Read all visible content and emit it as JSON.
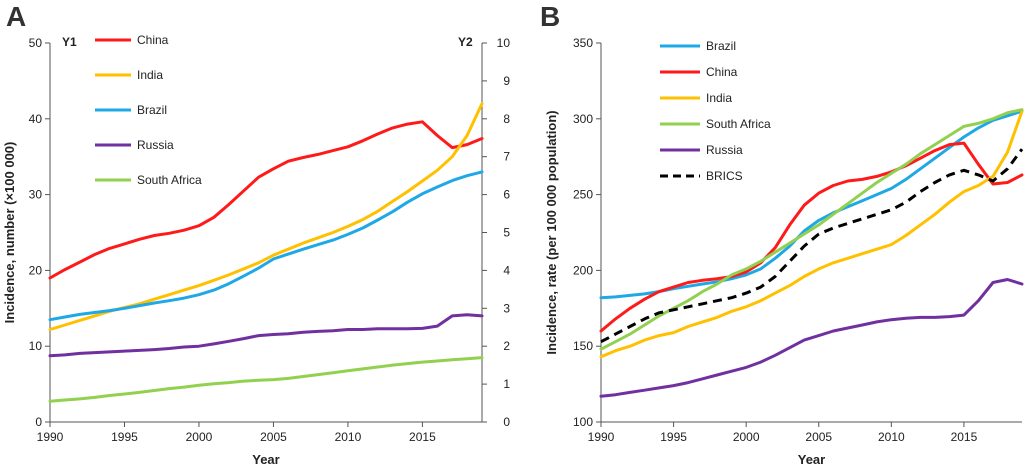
{
  "chart_data": [
    {
      "panel": "A",
      "type": "line",
      "title": "",
      "xlabel": "Year",
      "ylabel": "Incidence, number (×100 000)",
      "y1_tag": "Y1",
      "y2_tag": "Y2",
      "xlim": [
        1990,
        2019
      ],
      "ylim": [
        0,
        50
      ],
      "y2lim": [
        0,
        10
      ],
      "xticks": [
        1990,
        1995,
        2000,
        2005,
        2010,
        2015
      ],
      "yticks": [
        0,
        10,
        20,
        30,
        40,
        50
      ],
      "y2ticks": [
        0,
        1,
        2,
        3,
        4,
        5,
        6,
        7,
        8,
        9,
        10
      ],
      "grid": false,
      "legend_position": "top-left",
      "x": [
        1990,
        1991,
        1992,
        1993,
        1994,
        1995,
        1996,
        1997,
        1998,
        1999,
        2000,
        2001,
        2002,
        2003,
        2004,
        2005,
        2006,
        2007,
        2008,
        2009,
        2010,
        2011,
        2012,
        2013,
        2014,
        2015,
        2016,
        2017,
        2018,
        2019
      ],
      "series": [
        {
          "name": "China",
          "color": "#ff1a1a",
          "axis": "y1",
          "dash": false,
          "values": [
            19.0,
            20.1,
            21.1,
            22.1,
            22.9,
            23.5,
            24.1,
            24.6,
            24.9,
            25.3,
            25.9,
            27.0,
            28.7,
            30.5,
            32.3,
            33.4,
            34.4,
            34.9,
            35.3,
            35.8,
            36.3,
            37.1,
            38.0,
            38.8,
            39.3,
            39.6,
            37.8,
            36.2,
            36.6,
            37.4
          ]
        },
        {
          "name": "India",
          "color": "#ffc000",
          "axis": "y1",
          "dash": false,
          "values": [
            12.2,
            12.8,
            13.4,
            14.0,
            14.6,
            15.1,
            15.6,
            16.2,
            16.8,
            17.4,
            18.0,
            18.7,
            19.4,
            20.2,
            21.0,
            22.0,
            22.8,
            23.6,
            24.3,
            25.0,
            25.8,
            26.7,
            27.8,
            29.1,
            30.4,
            31.8,
            33.2,
            35.0,
            37.8,
            42.0
          ]
        },
        {
          "name": "Brazil",
          "color": "#1fa8e6",
          "axis": "y2",
          "dash": false,
          "values": [
            2.7,
            2.77,
            2.84,
            2.89,
            2.94,
            3.0,
            3.07,
            3.14,
            3.2,
            3.27,
            3.36,
            3.48,
            3.65,
            3.85,
            4.06,
            4.3,
            4.43,
            4.56,
            4.68,
            4.8,
            4.95,
            5.12,
            5.33,
            5.55,
            5.8,
            6.02,
            6.2,
            6.37,
            6.5,
            6.6
          ]
        },
        {
          "name": "Russia",
          "color": "#7030a0",
          "axis": "y2",
          "dash": false,
          "values": [
            1.75,
            1.77,
            1.81,
            1.83,
            1.85,
            1.87,
            1.89,
            1.91,
            1.94,
            1.98,
            2.0,
            2.06,
            2.13,
            2.2,
            2.28,
            2.31,
            2.33,
            2.37,
            2.39,
            2.41,
            2.44,
            2.44,
            2.46,
            2.46,
            2.46,
            2.47,
            2.53,
            2.8,
            2.83,
            2.8
          ]
        },
        {
          "name": "South Africa",
          "color": "#92d050",
          "axis": "y2",
          "dash": false,
          "values": [
            0.55,
            0.58,
            0.61,
            0.65,
            0.7,
            0.74,
            0.78,
            0.83,
            0.88,
            0.92,
            0.97,
            1.01,
            1.04,
            1.08,
            1.1,
            1.12,
            1.15,
            1.2,
            1.25,
            1.3,
            1.35,
            1.4,
            1.45,
            1.5,
            1.54,
            1.58,
            1.61,
            1.64,
            1.67,
            1.7
          ]
        }
      ]
    },
    {
      "panel": "B",
      "type": "line",
      "title": "",
      "xlabel": "Year",
      "ylabel": "Incidence, rate (per 100 000 population)",
      "xlim": [
        1990,
        2019
      ],
      "ylim": [
        100,
        350
      ],
      "xticks": [
        1990,
        1995,
        2000,
        2005,
        2010,
        2015
      ],
      "yticks": [
        100,
        150,
        200,
        250,
        300,
        350
      ],
      "grid": false,
      "legend_position": "top-left",
      "x": [
        1990,
        1991,
        1992,
        1993,
        1994,
        1995,
        1996,
        1997,
        1998,
        1999,
        2000,
        2001,
        2002,
        2003,
        2004,
        2005,
        2006,
        2007,
        2008,
        2009,
        2010,
        2011,
        2012,
        2013,
        2014,
        2015,
        2016,
        2017,
        2018,
        2019
      ],
      "series": [
        {
          "name": "Brazil",
          "color": "#1fa8e6",
          "dash": false,
          "values": [
            182,
            182.5,
            183.5,
            184.5,
            186,
            188,
            189.5,
            191,
            192.5,
            194.5,
            197,
            201,
            208,
            216,
            226,
            233,
            238,
            242,
            246,
            250,
            254,
            260,
            267,
            274,
            281,
            288,
            294,
            299,
            302,
            305
          ]
        },
        {
          "name": "China",
          "color": "#ff1a1a",
          "dash": false,
          "values": [
            160,
            168,
            175,
            181,
            186,
            189,
            192,
            193.5,
            194.5,
            196,
            199,
            205,
            215,
            230,
            243,
            251,
            256,
            259,
            260,
            262,
            265,
            269,
            274,
            279,
            283,
            284,
            270,
            257,
            258,
            263
          ]
        },
        {
          "name": "India",
          "color": "#ffc000",
          "dash": false,
          "values": [
            143,
            147,
            150,
            154,
            157,
            159,
            163,
            166,
            169,
            173,
            176,
            180,
            185,
            190,
            196,
            201,
            205,
            208,
            211,
            214,
            217,
            223,
            230,
            237,
            245,
            252,
            256,
            262,
            278,
            305
          ]
        },
        {
          "name": "South Africa",
          "color": "#92d050",
          "dash": false,
          "values": [
            148,
            153,
            158,
            164,
            170,
            175,
            180,
            186,
            191,
            197,
            201,
            206,
            212,
            218,
            224,
            230,
            237,
            244,
            251,
            258,
            264,
            270,
            277,
            283,
            289,
            295,
            297,
            300,
            304,
            306
          ]
        },
        {
          "name": "Russia",
          "color": "#7030a0",
          "dash": false,
          "values": [
            117,
            118,
            119.5,
            121,
            122.5,
            124,
            126,
            128.5,
            131,
            133.5,
            136,
            139.5,
            144,
            149,
            154,
            157,
            160,
            162,
            164,
            166,
            167.5,
            168.5,
            169,
            169,
            169.5,
            170.5,
            180,
            192,
            194,
            191
          ]
        },
        {
          "name": "BRICS",
          "color": "#000000",
          "dash": true,
          "values": [
            153,
            158,
            163,
            168,
            172,
            174,
            176,
            178,
            180,
            182,
            185,
            189,
            196,
            206,
            216,
            224,
            228,
            231,
            234,
            237,
            240,
            245,
            252,
            258,
            263,
            266,
            263,
            259,
            267,
            280
          ]
        }
      ]
    }
  ]
}
